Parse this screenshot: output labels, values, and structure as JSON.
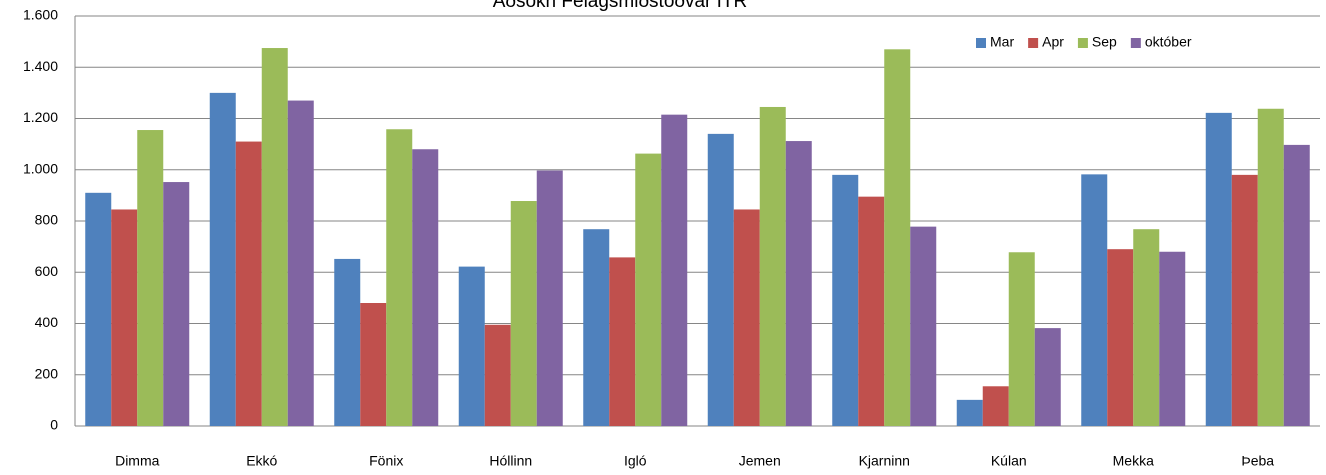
{
  "chart_data": {
    "type": "bar",
    "title": "Aðsókn Félagsmiðstöðvar ÍTR",
    "categories": [
      "Dimma",
      "Ekkó",
      "Fönix",
      "Hóllinn",
      "Igló",
      "Jemen",
      "Kjarninn",
      "Kúlan",
      "Mekka",
      "Þeba"
    ],
    "series": [
      {
        "name": "Mar",
        "color": "#4f81bd",
        "values": [
          910,
          1300,
          652,
          622,
          768,
          1140,
          980,
          102,
          982,
          1222
        ]
      },
      {
        "name": "Apr",
        "color": "#c0504d",
        "values": [
          845,
          1110,
          480,
          395,
          658,
          845,
          895,
          155,
          690,
          980
        ]
      },
      {
        "name": "Sep",
        "color": "#9bbb59",
        "values": [
          1155,
          1475,
          1158,
          878,
          1063,
          1245,
          1470,
          678,
          768,
          1238
        ]
      },
      {
        "name": "október",
        "color": "#8064a2",
        "values": [
          952,
          1270,
          1080,
          997,
          1215,
          1112,
          778,
          382,
          680,
          1097
        ]
      }
    ],
    "ylim": [
      0,
      1600
    ],
    "yticks": [
      0,
      200,
      400,
      600,
      800,
      {
        "value": 1000,
        "label": "1.000"
      },
      {
        "value": 1200,
        "label": "1.200"
      },
      {
        "value": 1400,
        "label": "1.400"
      },
      {
        "value": 1600,
        "label": "1.600"
      }
    ],
    "grid": true,
    "legend": "top-right"
  }
}
